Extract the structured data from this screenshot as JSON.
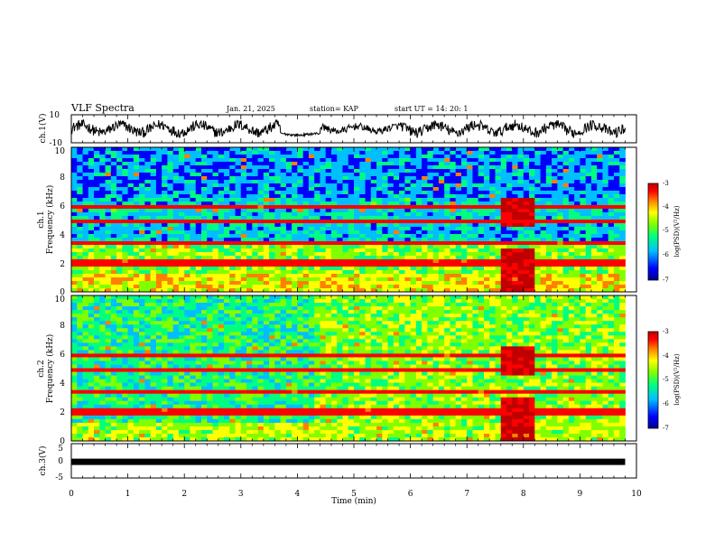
{
  "header": {
    "title": "VLF Spectra",
    "date": "Jan. 21, 2025",
    "station": "station= KAP",
    "start_ut": "start  UT =   14: 20: 1"
  },
  "chart_data": [
    {
      "type": "line",
      "name": "ch1-waveform",
      "ylabel": "ch.1(V)",
      "ylim": [
        -10,
        10
      ],
      "yticks": [
        "10",
        "-10"
      ],
      "xlim": [
        0,
        9.8
      ],
      "description_values": "noisy waveform, larger amplitude 0-3 min and 6-9.8 min, quieter ~3.8-4.3 min"
    },
    {
      "type": "heatmap",
      "name": "ch1-spectrogram",
      "ylabel": "ch.1",
      "ylabel2": "Frequency (kHz)",
      "ylim": [
        0,
        10
      ],
      "yticks": [
        "0",
        "2",
        "4",
        "6",
        "8",
        "10"
      ],
      "xlim": [
        0,
        9.8
      ],
      "bright_band_minutes": [
        7.6,
        8.2
      ],
      "colorbar": {
        "label": "log(PSD)(V²/Hz)",
        "range": [
          -7,
          -3
        ],
        "ticks": [
          "-3",
          "-4",
          "-5",
          "-6",
          "-7"
        ]
      }
    },
    {
      "type": "heatmap",
      "name": "ch2-spectrogram",
      "ylabel": "ch.2",
      "ylabel2": "Frequency (kHz)",
      "ylim": [
        0,
        10
      ],
      "yticks": [
        "0",
        "2",
        "4",
        "6",
        "8",
        "10"
      ],
      "xlim": [
        0,
        9.8
      ],
      "transition_minute": 4.3,
      "bright_band_minutes": [
        7.6,
        8.2
      ],
      "colorbar": {
        "label": "log(PSD)(V²/Hz)",
        "range": [
          -7,
          -3
        ],
        "ticks": [
          "-3",
          "-4",
          "-5",
          "-6",
          "-7"
        ]
      }
    },
    {
      "type": "line",
      "name": "ch3-level",
      "ylabel": "ch.3(V)",
      "ylim": [
        -5,
        5
      ],
      "yticks": [
        "5",
        "0",
        "-5"
      ],
      "value": -0.3,
      "xlim": [
        0,
        9.8
      ]
    }
  ],
  "x_axis": {
    "label": "Time  (min)",
    "range": [
      0,
      10
    ],
    "ticks": [
      "0",
      "1",
      "2",
      "3",
      "4",
      "5",
      "6",
      "7",
      "8",
      "9",
      "10"
    ]
  },
  "colors": {
    "colormap": [
      "#00008f",
      "#0000ff",
      "#00bfff",
      "#00ff80",
      "#80ff00",
      "#ffff00",
      "#ff8000",
      "#ff0000",
      "#c00000"
    ]
  }
}
